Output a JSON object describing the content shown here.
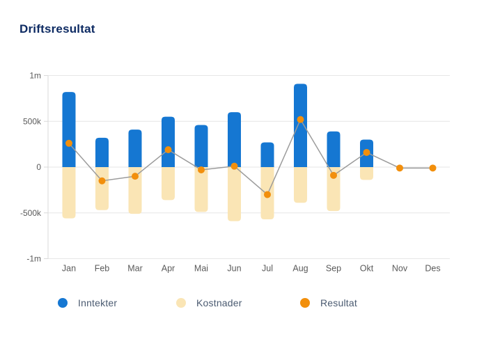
{
  "title": "Driftsresultat",
  "colors": {
    "title": "#0E2B63",
    "inntekter_bar": "#1577D2",
    "kostnader_bar": "#FAE5B5",
    "resultat_dot": "#F28F0C",
    "resultat_line": "#9B9B9B",
    "gridline": "#E6E6E6",
    "axis_line": "#D9D9D9",
    "axis_text": "#5A5A5A"
  },
  "chart_data": {
    "type": "bar",
    "title": "Driftsresultat",
    "categories": [
      "Jan",
      "Feb",
      "Mar",
      "Apr",
      "Mai",
      "Jun",
      "Jul",
      "Aug",
      "Sep",
      "Okt",
      "Nov",
      "Des"
    ],
    "series": [
      {
        "name": "Inntekter",
        "type": "bar",
        "color": "#1577D2",
        "values": [
          820000,
          320000,
          410000,
          550000,
          460000,
          600000,
          270000,
          910000,
          390000,
          300000,
          0,
          0
        ]
      },
      {
        "name": "Kostnader",
        "type": "bar",
        "color": "#FAE5B5",
        "values": [
          -560000,
          -470000,
          -510000,
          -360000,
          -490000,
          -590000,
          -570000,
          -390000,
          -480000,
          -140000,
          0,
          0
        ]
      },
      {
        "name": "Resultat",
        "type": "line",
        "color": "#F28F0C",
        "values": [
          260000,
          -150000,
          -100000,
          190000,
          -30000,
          10000,
          -300000,
          520000,
          -90000,
          160000,
          -10000,
          -10000
        ]
      }
    ],
    "xlabel": "",
    "ylabel": "",
    "ylim": [
      -1000000,
      1000000
    ],
    "grid": true,
    "legend_position": "bottom",
    "y_ticks": [
      {
        "label": "1m",
        "value": 1000000
      },
      {
        "label": "500k",
        "value": 500000
      },
      {
        "label": "0",
        "value": 0
      },
      {
        "label": "-500k",
        "value": -500000
      },
      {
        "label": "-1m",
        "value": -1000000
      }
    ]
  },
  "legend": {
    "items": [
      {
        "label": "Inntekter",
        "color": "#1577D2"
      },
      {
        "label": "Kostnader",
        "color": "#FAE5B5"
      },
      {
        "label": "Resultat",
        "color": "#F28F0C"
      }
    ]
  }
}
